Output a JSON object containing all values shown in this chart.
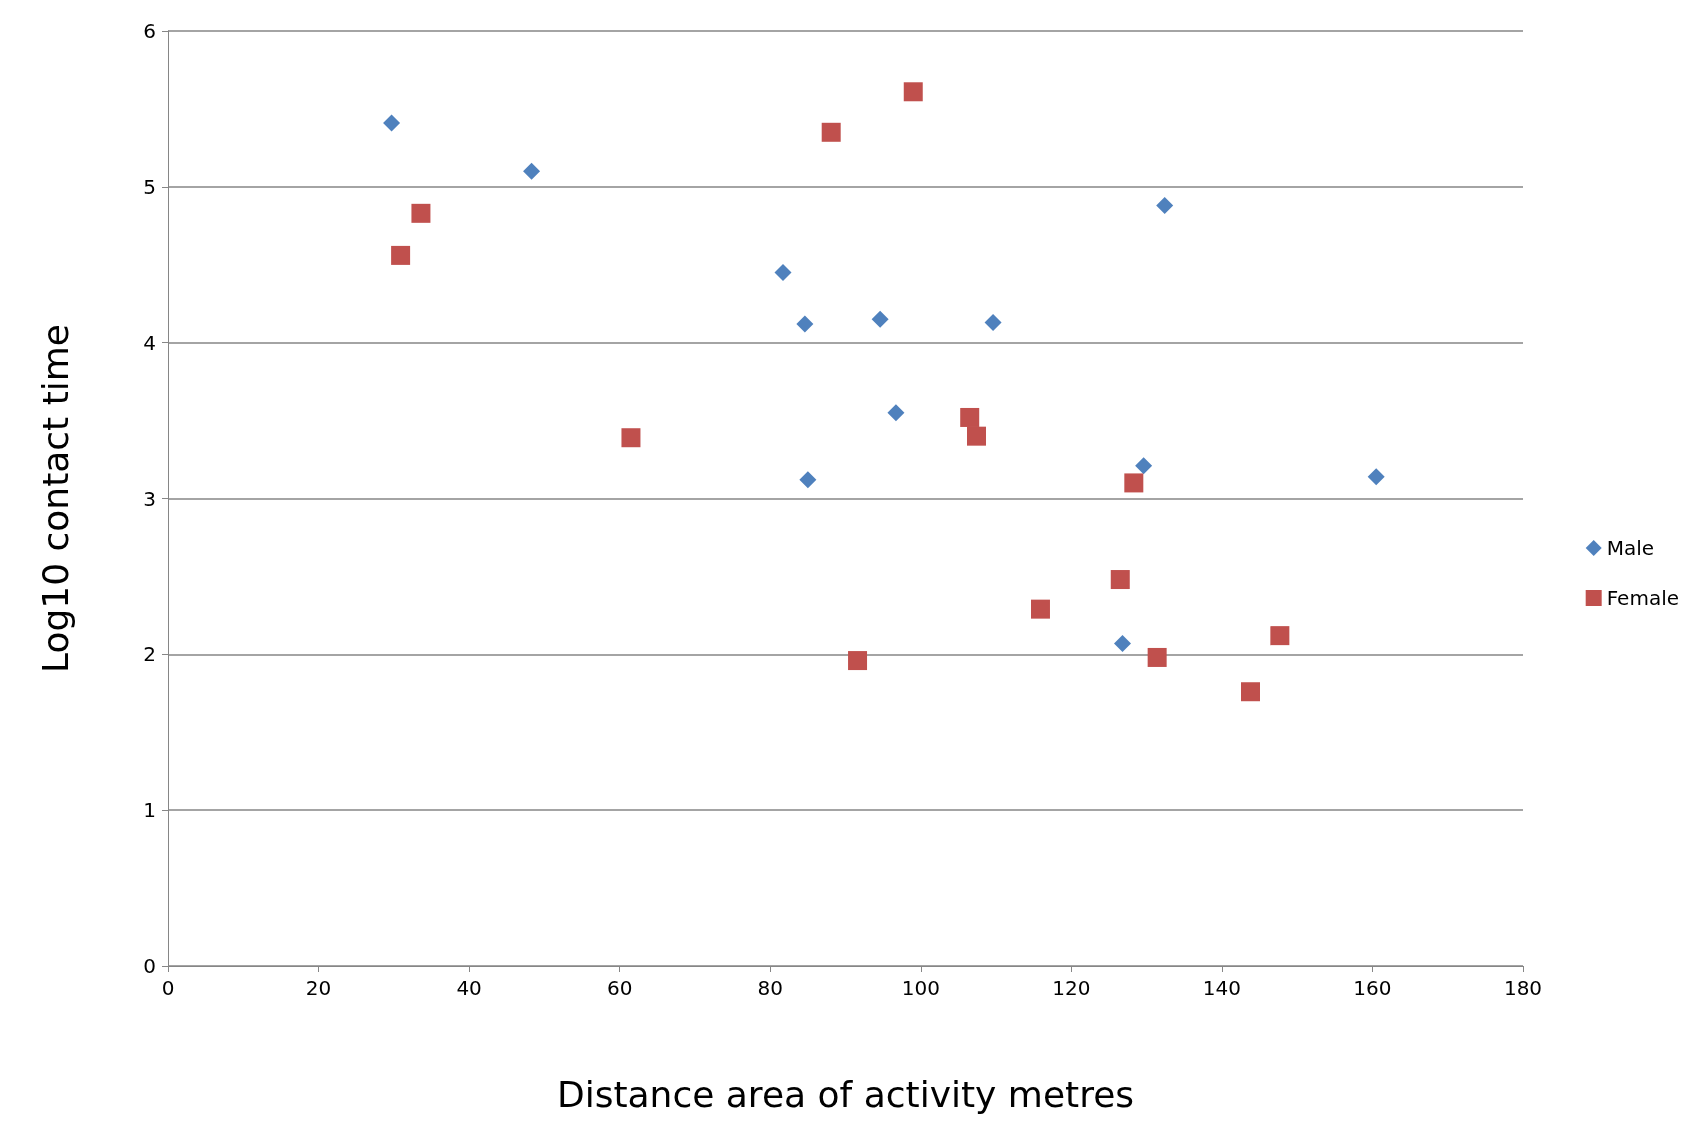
{
  "chart_data": {
    "type": "scatter",
    "xlabel": "Distance area of activity metres",
    "ylabel": "Log10 contact time",
    "xlim": [
      0,
      180
    ],
    "xticks": [
      0,
      20,
      40,
      60,
      80,
      100,
      120,
      140,
      160,
      180
    ],
    "ylim": [
      0,
      6
    ],
    "yticks": [
      0,
      1,
      2,
      3,
      4,
      5,
      6
    ],
    "grid": "y",
    "legend": "right",
    "series": [
      {
        "name": "Male",
        "color": "#4f81bd",
        "marker": "diamond",
        "x": [
          29.7,
          48.3,
          81.7,
          84.6,
          94.6,
          109.6,
          132.4,
          96.7,
          85.0,
          129.6,
          160.5,
          126.8
        ],
        "values": [
          5.41,
          5.1,
          4.45,
          4.12,
          4.15,
          4.13,
          4.88,
          3.55,
          3.12,
          3.21,
          3.14,
          2.07
        ]
      },
      {
        "name": "Female",
        "color": "#c0504d",
        "marker": "square",
        "x": [
          30.9,
          33.6,
          61.5,
          88.1,
          99.0,
          106.5,
          107.4,
          128.3,
          126.5,
          115.9,
          91.6,
          131.4,
          143.8,
          147.7
        ],
        "values": [
          4.56,
          4.83,
          3.39,
          5.35,
          5.61,
          3.52,
          3.4,
          3.1,
          2.48,
          2.29,
          1.96,
          1.98,
          1.76,
          2.12
        ]
      }
    ]
  }
}
